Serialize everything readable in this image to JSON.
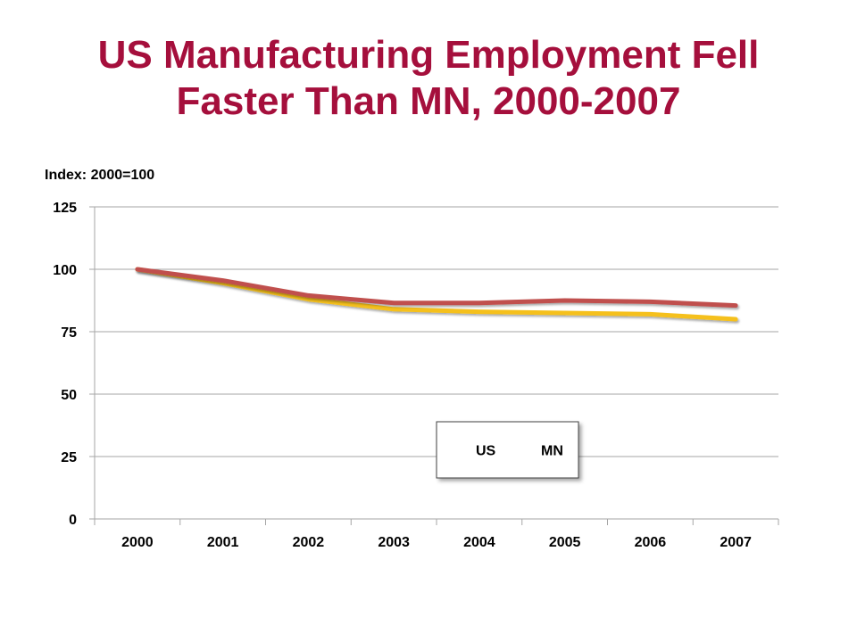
{
  "slide": {
    "title_line1": "US Manufacturing Employment Fell",
    "title_line2": "Faster Than MN, 2000-2007"
  },
  "colors": {
    "title": "#a50f3c",
    "us": "#f5c01a",
    "mn": "#c0504d",
    "grid": "#a6a6a6"
  },
  "chart_data": {
    "type": "line",
    "title": "US Manufacturing Employment Fell Faster Than MN, 2000-2007",
    "ylabel": "Index: 2000=100",
    "xlabel": "",
    "categories": [
      "2000",
      "2001",
      "2002",
      "2003",
      "2004",
      "2005",
      "2006",
      "2007"
    ],
    "ylim": [
      0,
      125
    ],
    "yticks": [
      0,
      25,
      50,
      75,
      100,
      125
    ],
    "grid": true,
    "legend_position": "center",
    "series": [
      {
        "name": "US",
        "color": "#f5c01a",
        "values": [
          100,
          94.5,
          88,
          84,
          83,
          82.5,
          82,
          80
        ]
      },
      {
        "name": "MN",
        "color": "#c0504d",
        "values": [
          100,
          95.5,
          89.5,
          86.5,
          86.5,
          87.5,
          87,
          85.5
        ]
      }
    ]
  }
}
